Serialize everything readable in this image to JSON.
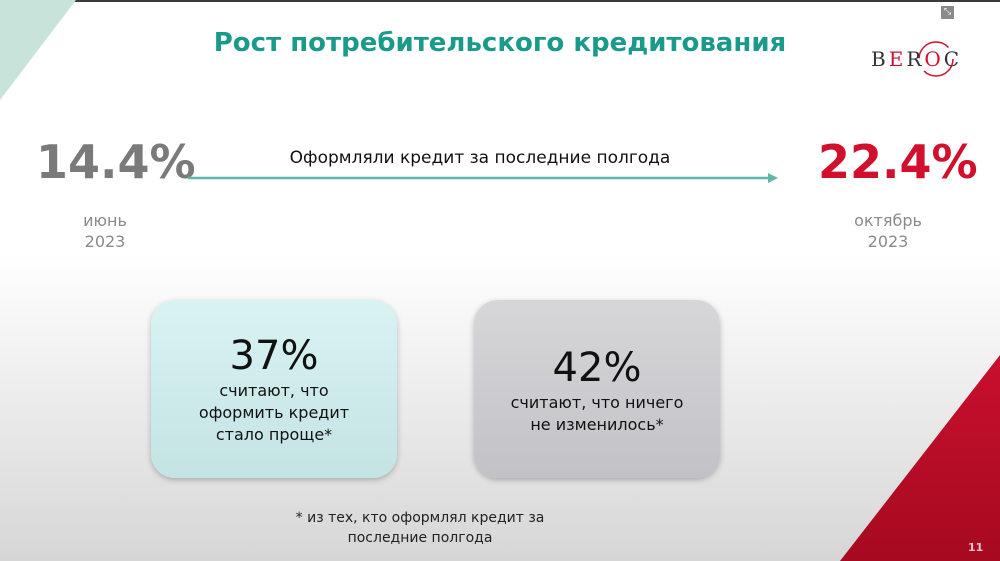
{
  "slide": {
    "title": "Рост потребительского кредитования",
    "logo_text": "BEROC",
    "page_number": "11",
    "colors": {
      "title": "#1a9a8a",
      "accent_red": "#d0102c",
      "corner_green": "#c7e3da"
    }
  },
  "comparison": {
    "label": "Оформляли кредит за последние полгода",
    "from": {
      "value": "14.4%",
      "month": "июнь",
      "year": "2023"
    },
    "to": {
      "value": "22.4%",
      "month": "октябрь",
      "year": "2023"
    }
  },
  "cards": [
    {
      "value": "37%",
      "lines": [
        "считают, что",
        "оформить кредит",
        "стало проще*"
      ]
    },
    {
      "value": "42%",
      "lines": [
        "считают, что ничего",
        "не изменилось*"
      ]
    }
  ],
  "footnote": [
    "* из тех, кто оформлял кредит за",
    "последние полгода"
  ]
}
